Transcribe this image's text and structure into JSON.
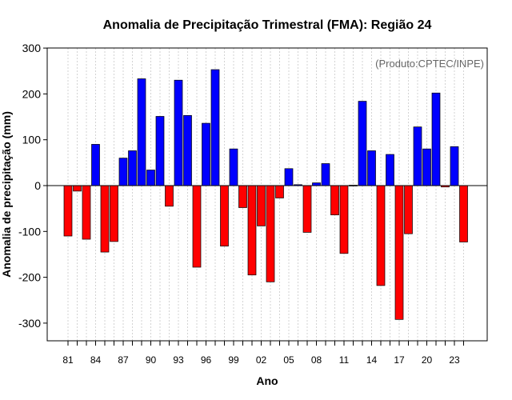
{
  "chart_data": {
    "type": "bar",
    "title": "Anomalia de Precipitação Trimestral (FMA): Região 24",
    "xlabel": "Ano",
    "ylabel": "Anomalia de precipitação (mm)",
    "annotation": "(Produto:CPTEC/INPE)",
    "ylim": [
      -340,
      300
    ],
    "yticks": [
      300,
      200,
      100,
      0,
      -100,
      -200,
      -300
    ],
    "ytick_labels": [
      "300",
      "200",
      "100",
      "0",
      "-100",
      "-200",
      "-300"
    ],
    "grid": true,
    "categories": [
      "1981",
      "1982",
      "1983",
      "1984",
      "1985",
      "1986",
      "1987",
      "1988",
      "1989",
      "1990",
      "1991",
      "1992",
      "1993",
      "1994",
      "1995",
      "1996",
      "1997",
      "1998",
      "1999",
      "2000",
      "2001",
      "2002",
      "2003",
      "2004",
      "2005",
      "2006",
      "2007",
      "2008",
      "2009",
      "2010",
      "2011",
      "2012",
      "2013",
      "2014",
      "2015",
      "2016",
      "2017",
      "2018",
      "2019",
      "2020",
      "2021",
      "2022",
      "2023",
      "2024"
    ],
    "values": [
      -110,
      -12,
      -117,
      90,
      -145,
      -122,
      60,
      76,
      233,
      34,
      151,
      -45,
      230,
      153,
      -178,
      136,
      253,
      -132,
      80,
      -48,
      -195,
      -88,
      -210,
      -27,
      37,
      2,
      -102,
      6,
      48,
      -64,
      -148,
      0,
      184,
      76,
      -218,
      68,
      -292,
      -105,
      128,
      80,
      202,
      -3,
      85,
      -123
    ],
    "xtick_labels": [
      "81",
      "84",
      "87",
      "90",
      "93",
      "96",
      "99",
      "02",
      "05",
      "08",
      "11",
      "14",
      "17",
      "20",
      "23"
    ],
    "colors": {
      "positive": "#0000ff",
      "negative": "#ff0000",
      "grid": "#d3d3d3",
      "zero_line": "#000000",
      "annotation": "#666666"
    }
  }
}
